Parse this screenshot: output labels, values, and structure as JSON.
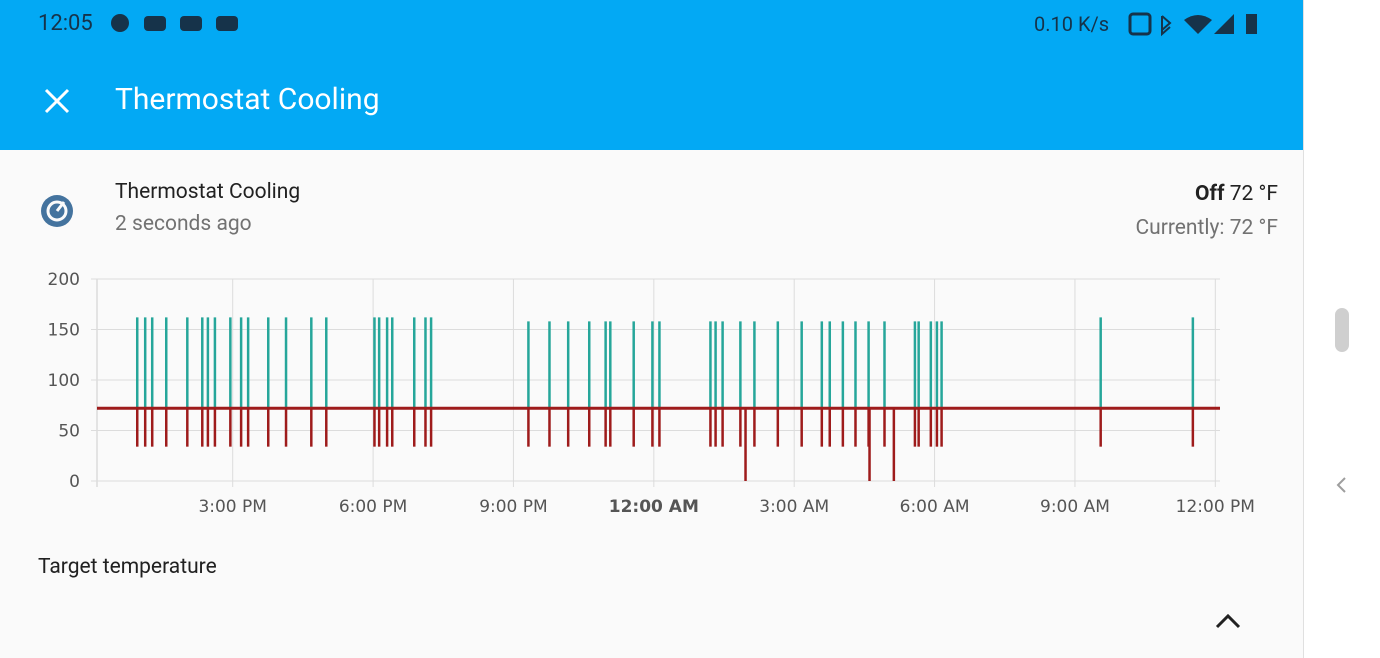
{
  "status_bar": {
    "time": "12:05",
    "net_speed": "0.10 K/s"
  },
  "header": {
    "title": "Thermostat Cooling"
  },
  "entity": {
    "name": "Thermostat Cooling",
    "updated": "2 seconds ago",
    "state": "Off",
    "target": "72 °F",
    "current": "Currently: 72 °F"
  },
  "section": {
    "title": "Target temperature"
  },
  "chart_data": {
    "type": "spike",
    "xlim": [
      12.1,
      36.1
    ],
    "ylim": [
      0,
      200
    ],
    "yticks": [
      0,
      50,
      100,
      150,
      200
    ],
    "xticks": [
      {
        "value": 15,
        "label": "3:00 PM"
      },
      {
        "value": 18,
        "label": "6:00 PM"
      },
      {
        "value": 21,
        "label": "9:00 PM"
      },
      {
        "value": 24,
        "label": "12:00 AM",
        "bold": true
      },
      {
        "value": 27,
        "label": "3:00 AM"
      },
      {
        "value": 30,
        "label": "6:00 AM"
      },
      {
        "value": 33,
        "label": "9:00 AM"
      },
      {
        "value": 36,
        "label": "12:00 PM"
      }
    ],
    "grid": true,
    "baseline": {
      "color": "#9e1b1b",
      "x": [
        12.1,
        36.1
      ],
      "values": [
        72,
        72
      ]
    },
    "series": [
      {
        "color": "#26a69a",
        "x": [
          12.96,
          13.13,
          13.28,
          13.58,
          14.03,
          14.35,
          14.47,
          14.62,
          14.95,
          15.18,
          15.33,
          15.76,
          16.14,
          16.68,
          17.0,
          18.03,
          18.13,
          18.3,
          18.41,
          18.88,
          19.12,
          19.24,
          21.32,
          21.77,
          22.17,
          22.62,
          22.97,
          23.07,
          23.57,
          23.97,
          24.12,
          25.21,
          25.32,
          25.47,
          25.85,
          26.15,
          26.65,
          27.16,
          27.59,
          27.76,
          28.04,
          28.31,
          28.59,
          28.93,
          29.58,
          29.66,
          29.92,
          30.05,
          30.15,
          33.55,
          35.52
        ],
        "values": [
          162,
          162,
          162,
          162,
          162,
          162,
          162,
          162,
          162,
          162,
          162,
          162,
          162,
          162,
          162,
          162,
          162,
          162,
          162,
          162,
          162,
          162,
          158,
          158,
          158,
          158,
          158,
          158,
          158,
          158,
          158,
          158,
          158,
          158,
          158,
          158,
          158,
          158,
          158,
          158,
          158,
          158,
          158,
          158,
          158,
          158,
          158,
          158,
          158,
          162,
          162
        ]
      },
      {
        "color": "#9e1b1b",
        "x": [
          12.96,
          13.13,
          13.28,
          13.58,
          14.03,
          14.35,
          14.47,
          14.62,
          14.95,
          15.18,
          15.33,
          15.76,
          16.14,
          16.68,
          17.0,
          18.03,
          18.13,
          18.3,
          18.41,
          18.88,
          19.12,
          19.24,
          21.32,
          21.77,
          22.17,
          22.62,
          22.97,
          23.07,
          23.57,
          23.97,
          24.12,
          25.21,
          25.32,
          25.47,
          25.85,
          25.96,
          26.15,
          26.65,
          27.16,
          27.59,
          27.76,
          28.04,
          28.31,
          28.59,
          28.61,
          28.93,
          29.13,
          29.58,
          29.66,
          29.92,
          30.05,
          30.15,
          33.55,
          35.52
        ],
        "values": [
          34,
          34,
          34,
          34,
          34,
          34,
          34,
          34,
          34,
          34,
          34,
          34,
          34,
          34,
          34,
          34,
          34,
          34,
          34,
          34,
          34,
          34,
          34,
          34,
          34,
          34,
          34,
          34,
          34,
          34,
          34,
          34,
          34,
          34,
          34,
          0,
          34,
          34,
          34,
          34,
          34,
          34,
          34,
          34,
          0,
          34,
          0,
          34,
          34,
          34,
          34,
          34,
          34,
          34
        ]
      }
    ]
  }
}
